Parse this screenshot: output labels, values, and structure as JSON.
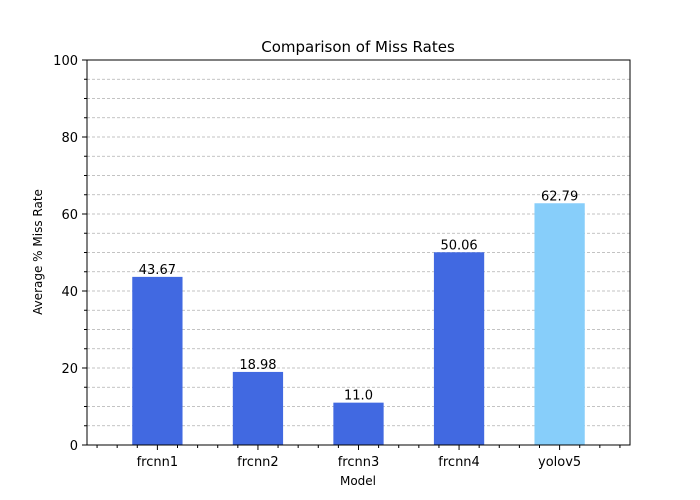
{
  "chart_data": {
    "type": "bar",
    "title": "Comparison of Miss Rates",
    "xlabel": "Model",
    "ylabel": "Average % Miss Rate",
    "categories": [
      "frcnn1",
      "frcnn2",
      "frcnn3",
      "frcnn4",
      "yolov5"
    ],
    "values": [
      43.67,
      18.98,
      11.0,
      50.06,
      62.79
    ],
    "value_labels": [
      "43.67",
      "18.98",
      "11.0",
      "50.06",
      "62.79"
    ],
    "bar_colors": [
      "#4169e1",
      "#4169e1",
      "#4169e1",
      "#4169e1",
      "#87cefa"
    ],
    "ylim": [
      0,
      100
    ],
    "yticks": [
      0,
      20,
      40,
      60,
      80,
      100
    ],
    "yticks_minor_step": 5,
    "grid": "y-major-and-minor-dashed",
    "legend": "none"
  }
}
